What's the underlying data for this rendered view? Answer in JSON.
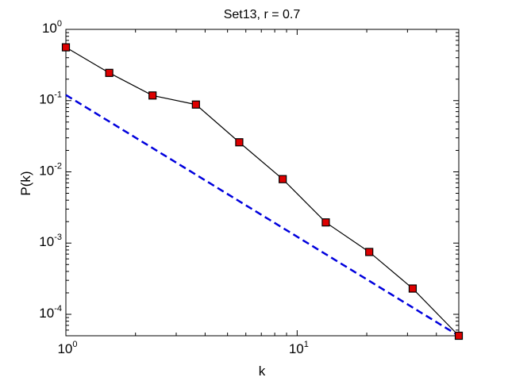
{
  "chart_data": {
    "type": "line",
    "title": "Set13, r = 0.7",
    "xlabel": "k",
    "ylabel": "P(k)",
    "xscale": "log",
    "yscale": "log",
    "xlim": [
      1,
      50
    ],
    "ylim": [
      5e-05,
      1
    ],
    "grid": false,
    "legend": "none",
    "x_ticks": [
      {
        "value": 1,
        "base": "10",
        "exp": "0"
      },
      {
        "value": 10,
        "base": "10",
        "exp": "1"
      }
    ],
    "y_ticks": [
      {
        "value": 1,
        "base": "10",
        "exp": "0"
      },
      {
        "value": 0.1,
        "base": "10",
        "exp": "-1"
      },
      {
        "value": 0.01,
        "base": "10",
        "exp": "-2"
      },
      {
        "value": 0.001,
        "base": "10",
        "exp": "-3"
      },
      {
        "value": 0.0001,
        "base": "10",
        "exp": "-4"
      }
    ],
    "series": [
      {
        "style": "solid line with square markers",
        "color": "#000000",
        "marker_color": "#dd0000",
        "x": [
          1.0,
          1.54,
          2.37,
          3.65,
          5.62,
          8.66,
          13.3,
          20.5,
          31.6,
          50.0
        ],
        "y": [
          0.56,
          0.245,
          0.118,
          0.088,
          0.026,
          0.0079,
          0.00195,
          0.00075,
          0.00023,
          5e-05
        ]
      },
      {
        "style": "dashed line",
        "color": "#0000dd",
        "x": [
          1.0,
          50.0
        ],
        "y": [
          0.12,
          5e-05
        ]
      }
    ]
  }
}
